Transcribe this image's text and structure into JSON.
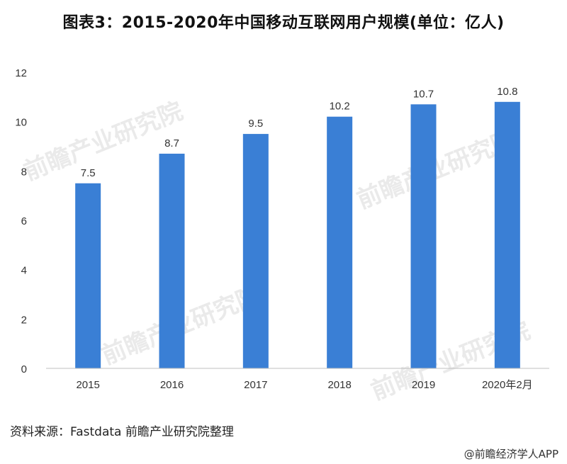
{
  "title": "图表3：2015-2020年中国移动互联网用户规模(单位：亿人)",
  "source": "资料来源：Fastdata   前瞻产业研究院整理",
  "credit": "@前瞻经济学人APP",
  "watermark": "前瞻产业研究院",
  "colors": {
    "bar": "#3a7fd5",
    "axis": "#bfbfbf",
    "text": "#333333"
  },
  "chart_data": {
    "type": "bar",
    "title": "2015-2020年中国移动互联网用户规模(单位：亿人)",
    "categories": [
      "2015",
      "2016",
      "2017",
      "2018",
      "2019",
      "2020年2月"
    ],
    "values": [
      7.5,
      8.7,
      9.5,
      10.2,
      10.7,
      10.8
    ],
    "data_labels": [
      "7.5",
      "8.7",
      "9.5",
      "10.2",
      "10.7",
      "10.8"
    ],
    "yticks": [
      0,
      2,
      4,
      6,
      8,
      10,
      12
    ],
    "ylim": [
      0,
      12
    ],
    "xlabel": "",
    "ylabel": "",
    "grid": false,
    "legend": "none"
  }
}
